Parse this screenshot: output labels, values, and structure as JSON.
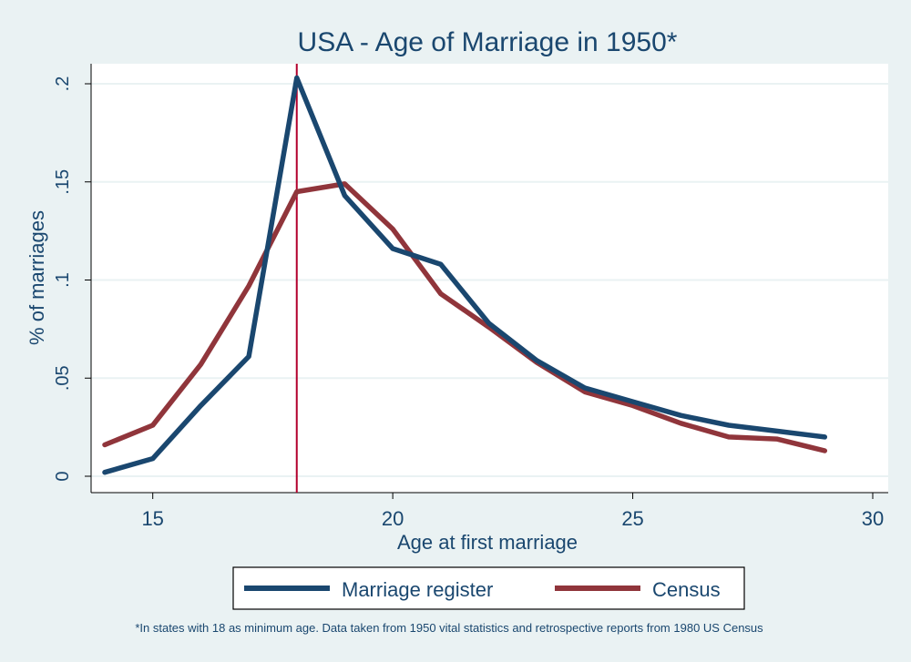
{
  "chart_data": {
    "type": "line",
    "title": "USA - Age of Marriage in 1950*",
    "xlabel": "Age at first marriage",
    "ylabel": "% of marriages",
    "xlim": [
      14,
      30
    ],
    "ylim": [
      0,
      0.2
    ],
    "xticks": [
      {
        "value": 15,
        "label": "15"
      },
      {
        "value": 20,
        "label": "20"
      },
      {
        "value": 25,
        "label": "25"
      },
      {
        "value": 30,
        "label": "30"
      }
    ],
    "yticks": [
      {
        "value": 0,
        "label": "0"
      },
      {
        "value": 0.05,
        "label": ".05"
      },
      {
        "value": 0.1,
        "label": ".1"
      },
      {
        "value": 0.15,
        "label": ".15"
      },
      {
        "value": 0.2,
        "label": ".2"
      }
    ],
    "grid": true,
    "reference_line": {
      "x": 18,
      "color": "#b3002d"
    },
    "x": [
      14,
      15,
      16,
      17,
      18,
      19,
      20,
      21,
      22,
      23,
      24,
      25,
      26,
      27,
      28,
      29
    ],
    "series": [
      {
        "name": "Marriage register",
        "color": "#1a476f",
        "values": [
          0.002,
          0.009,
          0.036,
          0.061,
          0.203,
          0.143,
          0.116,
          0.108,
          0.078,
          0.059,
          0.045,
          0.038,
          0.031,
          0.026,
          0.023,
          0.02
        ]
      },
      {
        "name": "Census",
        "color": "#90353b",
        "values": [
          0.016,
          0.026,
          0.057,
          0.097,
          0.145,
          0.149,
          0.126,
          0.093,
          0.076,
          0.058,
          0.043,
          0.036,
          0.027,
          0.02,
          0.019,
          0.013
        ]
      }
    ],
    "legend_position": "bottom",
    "footnote": "*In states with 18 as minimum age. Data taken from 1950 vital statistics and retrospective reports from 1980 US Census"
  },
  "colors": {
    "background": "#eaf2f3",
    "plot_background": "#ffffff",
    "text": "#1a476f",
    "grid": "#eaf2f3"
  }
}
